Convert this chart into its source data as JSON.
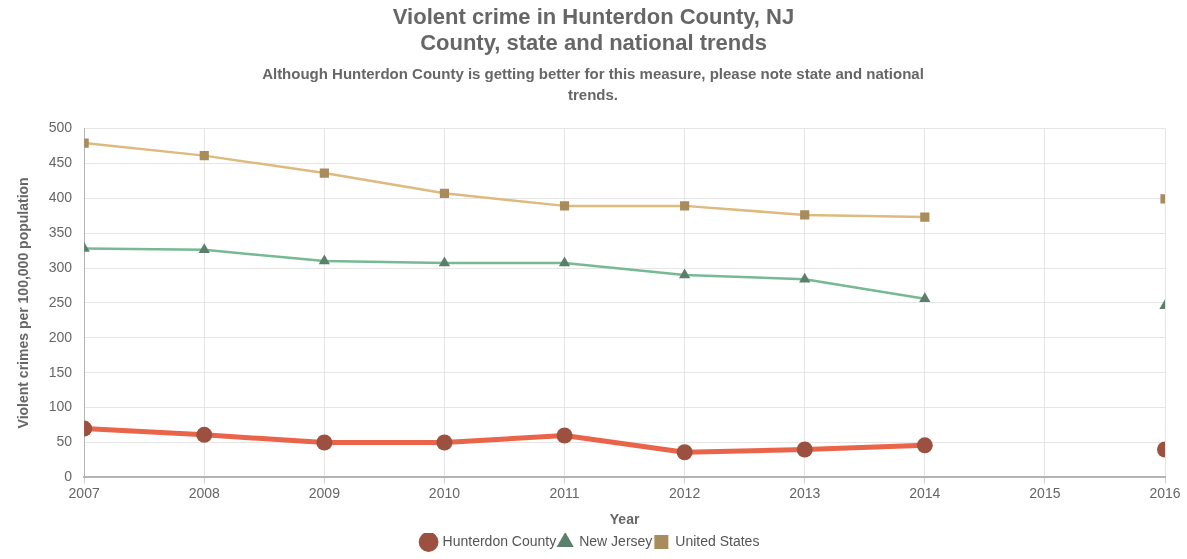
{
  "chart_data": {
    "type": "line",
    "title": "Violent crime in Hunterdon County, NJ\nCounty, state and national trends",
    "subtitle": "Although Hunterdon County is getting better for this measure, please note state and national trends.",
    "xlabel": "Year",
    "ylabel": "Violent crimes per 100,000 population",
    "x": [
      2007,
      2008,
      2009,
      2010,
      2011,
      2012,
      2013,
      2014,
      2015,
      2016
    ],
    "xlim": [
      2007,
      2016
    ],
    "xticks": [
      2007,
      2008,
      2009,
      2010,
      2011,
      2012,
      2013,
      2014,
      2015,
      2016
    ],
    "ylim": [
      0,
      500
    ],
    "yticks": [
      0,
      50,
      100,
      150,
      200,
      250,
      300,
      350,
      400,
      450,
      500
    ],
    "grid": true,
    "legend": "bottom",
    "series": [
      {
        "name": "Hunterdon County",
        "color": "#9b5040",
        "marker": "circle",
        "values": [
          70,
          61,
          50,
          50,
          60,
          36,
          40,
          46,
          null,
          40
        ]
      },
      {
        "name": "New Jersey",
        "color": "#5a7f6a",
        "marker": "triangle",
        "values": [
          328,
          326,
          310,
          307,
          307,
          290,
          284,
          256,
          null,
          246
        ]
      },
      {
        "name": "United States",
        "color": "#a88c5c",
        "marker": "square",
        "values": [
          479,
          461,
          436,
          407,
          389,
          389,
          376,
          373,
          null,
          399
        ]
      }
    ]
  }
}
